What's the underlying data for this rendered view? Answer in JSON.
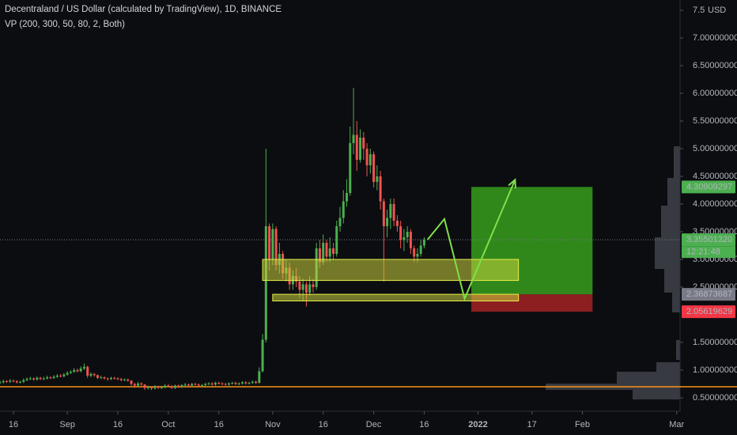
{
  "chart_data": {
    "type": "candlestick",
    "title": "Decentraland / US Dollar (calculated by TradingView), 1D, BINANCE",
    "subtitle": "VP (200, 300, 50, 80, 2, Both)",
    "unit_label": "USD",
    "up_color": "#4caf50",
    "down_color": "#ef5350",
    "x": [
      "2021-08-12",
      "2021-08-13",
      "2021-08-14",
      "2021-08-15",
      "2021-08-16",
      "2021-08-17",
      "2021-08-18",
      "2021-08-19",
      "2021-08-20",
      "2021-08-21",
      "2021-08-22",
      "2021-08-23",
      "2021-08-24",
      "2021-08-25",
      "2021-08-26",
      "2021-08-27",
      "2021-08-28",
      "2021-08-29",
      "2021-08-30",
      "2021-08-31",
      "2021-09-01",
      "2021-09-02",
      "2021-09-03",
      "2021-09-04",
      "2021-09-05",
      "2021-09-06",
      "2021-09-07",
      "2021-09-08",
      "2021-09-09",
      "2021-09-10",
      "2021-09-11",
      "2021-09-12",
      "2021-09-13",
      "2021-09-14",
      "2021-09-15",
      "2021-09-16",
      "2021-09-17",
      "2021-09-18",
      "2021-09-19",
      "2021-09-20",
      "2021-09-21",
      "2021-09-22",
      "2021-09-23",
      "2021-09-24",
      "2021-09-25",
      "2021-09-26",
      "2021-09-27",
      "2021-09-28",
      "2021-09-29",
      "2021-09-30",
      "2021-10-01",
      "2021-10-02",
      "2021-10-03",
      "2021-10-04",
      "2021-10-05",
      "2021-10-06",
      "2021-10-07",
      "2021-10-08",
      "2021-10-09",
      "2021-10-10",
      "2021-10-11",
      "2021-10-12",
      "2021-10-13",
      "2021-10-14",
      "2021-10-15",
      "2021-10-16",
      "2021-10-17",
      "2021-10-18",
      "2021-10-19",
      "2021-10-20",
      "2021-10-21",
      "2021-10-22",
      "2021-10-23",
      "2021-10-24",
      "2021-10-25",
      "2021-10-26",
      "2021-10-27",
      "2021-10-28",
      "2021-10-29",
      "2021-10-30",
      "2021-10-31",
      "2021-11-01",
      "2021-11-02",
      "2021-11-03",
      "2021-11-04",
      "2021-11-05",
      "2021-11-06",
      "2021-11-07",
      "2021-11-08",
      "2021-11-09",
      "2021-11-10",
      "2021-11-11",
      "2021-11-12",
      "2021-11-13",
      "2021-11-14",
      "2021-11-15",
      "2021-11-16",
      "2021-11-17",
      "2021-11-18",
      "2021-11-19",
      "2021-11-20",
      "2021-11-21",
      "2021-11-22",
      "2021-11-23",
      "2021-11-24",
      "2021-11-25",
      "2021-11-26",
      "2021-11-27",
      "2021-11-28",
      "2021-11-29",
      "2021-11-30",
      "2021-12-01",
      "2021-12-02",
      "2021-12-03",
      "2021-12-04",
      "2021-12-05",
      "2021-12-06",
      "2021-12-07",
      "2021-12-08",
      "2021-12-09",
      "2021-12-10",
      "2021-12-11",
      "2021-12-12",
      "2021-12-13",
      "2021-12-14",
      "2021-12-15",
      "2021-12-16"
    ],
    "open": [
      0.77,
      0.78,
      0.8,
      0.79,
      0.81,
      0.8,
      0.78,
      0.79,
      0.82,
      0.84,
      0.85,
      0.83,
      0.86,
      0.84,
      0.85,
      0.87,
      0.86,
      0.88,
      0.9,
      0.89,
      0.92,
      0.95,
      0.97,
      1.0,
      0.98,
      1.03,
      1.06,
      0.9,
      0.93,
      0.91,
      0.86,
      0.87,
      0.85,
      0.84,
      0.86,
      0.85,
      0.84,
      0.82,
      0.83,
      0.81,
      0.75,
      0.72,
      0.76,
      0.74,
      0.68,
      0.69,
      0.67,
      0.7,
      0.68,
      0.69,
      0.72,
      0.71,
      0.68,
      0.72,
      0.7,
      0.73,
      0.74,
      0.72,
      0.75,
      0.74,
      0.72,
      0.73,
      0.75,
      0.76,
      0.74,
      0.77,
      0.76,
      0.75,
      0.74,
      0.76,
      0.77,
      0.75,
      0.76,
      0.78,
      0.76,
      0.77,
      0.79,
      0.77,
      0.98,
      1.55,
      3.6,
      3.0,
      3.55,
      2.9,
      3.1,
      2.75,
      2.85,
      2.55,
      2.7,
      2.6,
      2.45,
      2.55,
      2.4,
      2.55,
      2.5,
      3.2,
      2.95,
      3.3,
      3.05,
      3.2,
      3.1,
      3.6,
      3.75,
      4.05,
      4.2,
      5.1,
      5.25,
      4.8,
      5.2,
      5.0,
      4.7,
      4.9,
      4.4,
      4.5,
      4.05,
      3.6,
      3.75,
      4.0,
      3.7,
      3.6,
      3.35,
      3.4,
      3.5,
      3.2,
      3.05,
      3.1,
      3.25
    ],
    "high": [
      0.81,
      0.83,
      0.82,
      0.84,
      0.83,
      0.82,
      0.81,
      0.85,
      0.87,
      0.88,
      0.87,
      0.89,
      0.88,
      0.88,
      0.9,
      0.89,
      0.91,
      0.93,
      0.93,
      0.95,
      0.98,
      1.0,
      1.04,
      1.03,
      1.07,
      1.12,
      1.08,
      0.96,
      0.95,
      0.92,
      0.9,
      0.89,
      0.87,
      0.88,
      0.88,
      0.87,
      0.86,
      0.85,
      0.85,
      0.82,
      0.77,
      0.79,
      0.78,
      0.75,
      0.72,
      0.71,
      0.73,
      0.72,
      0.72,
      0.75,
      0.75,
      0.73,
      0.74,
      0.74,
      0.75,
      0.77,
      0.76,
      0.77,
      0.77,
      0.76,
      0.75,
      0.77,
      0.78,
      0.78,
      0.79,
      0.79,
      0.78,
      0.77,
      0.78,
      0.79,
      0.79,
      0.78,
      0.8,
      0.8,
      0.79,
      0.81,
      0.81,
      1.05,
      1.65,
      5.0,
      3.65,
      3.65,
      3.6,
      3.3,
      3.15,
      3.0,
      2.95,
      2.8,
      2.85,
      2.7,
      2.65,
      2.6,
      2.7,
      2.65,
      3.3,
      3.35,
      3.45,
      3.35,
      3.4,
      3.3,
      3.7,
      3.95,
      4.25,
      4.45,
      5.4,
      6.1,
      5.5,
      5.35,
      5.3,
      5.1,
      5.0,
      4.95,
      4.7,
      4.6,
      4.1,
      3.9,
      4.1,
      4.1,
      3.8,
      3.7,
      3.55,
      3.6,
      3.55,
      3.25,
      3.2,
      3.35,
      3.4
    ],
    "low": [
      0.75,
      0.76,
      0.77,
      0.77,
      0.78,
      0.76,
      0.76,
      0.77,
      0.8,
      0.82,
      0.81,
      0.81,
      0.82,
      0.82,
      0.83,
      0.84,
      0.84,
      0.86,
      0.87,
      0.87,
      0.9,
      0.93,
      0.95,
      0.96,
      0.96,
      1.0,
      0.86,
      0.87,
      0.88,
      0.84,
      0.84,
      0.83,
      0.81,
      0.82,
      0.83,
      0.82,
      0.8,
      0.8,
      0.79,
      0.72,
      0.68,
      0.7,
      0.72,
      0.64,
      0.65,
      0.64,
      0.65,
      0.66,
      0.66,
      0.67,
      0.69,
      0.66,
      0.66,
      0.68,
      0.68,
      0.71,
      0.7,
      0.7,
      0.72,
      0.7,
      0.7,
      0.71,
      0.73,
      0.72,
      0.72,
      0.74,
      0.73,
      0.72,
      0.72,
      0.74,
      0.73,
      0.73,
      0.74,
      0.74,
      0.74,
      0.75,
      0.75,
      0.76,
      0.96,
      1.5,
      2.8,
      2.9,
      2.8,
      2.75,
      2.65,
      2.6,
      2.45,
      2.45,
      2.5,
      2.3,
      2.25,
      2.15,
      2.35,
      2.4,
      2.45,
      2.85,
      2.9,
      2.95,
      2.95,
      3.0,
      3.05,
      3.5,
      3.65,
      3.95,
      4.15,
      4.9,
      4.6,
      4.75,
      4.8,
      4.5,
      4.55,
      4.3,
      4.25,
      3.9,
      2.6,
      3.4,
      3.55,
      3.6,
      3.5,
      3.2,
      3.15,
      3.3,
      3.1,
      2.95,
      2.95,
      3.05,
      3.2
    ],
    "close": [
      0.78,
      0.8,
      0.79,
      0.81,
      0.8,
      0.78,
      0.79,
      0.82,
      0.84,
      0.85,
      0.83,
      0.86,
      0.84,
      0.85,
      0.87,
      0.86,
      0.88,
      0.9,
      0.89,
      0.92,
      0.95,
      0.97,
      1.0,
      0.98,
      1.03,
      1.06,
      0.9,
      0.93,
      0.91,
      0.86,
      0.87,
      0.85,
      0.84,
      0.86,
      0.85,
      0.84,
      0.82,
      0.83,
      0.81,
      0.75,
      0.72,
      0.76,
      0.74,
      0.68,
      0.69,
      0.67,
      0.7,
      0.68,
      0.69,
      0.72,
      0.71,
      0.68,
      0.72,
      0.7,
      0.73,
      0.74,
      0.72,
      0.75,
      0.74,
      0.72,
      0.73,
      0.75,
      0.76,
      0.74,
      0.77,
      0.76,
      0.75,
      0.74,
      0.76,
      0.77,
      0.75,
      0.76,
      0.78,
      0.76,
      0.77,
      0.79,
      0.77,
      0.98,
      1.55,
      3.6,
      3.0,
      3.55,
      2.9,
      3.1,
      2.75,
      2.85,
      2.55,
      2.7,
      2.6,
      2.45,
      2.55,
      2.4,
      2.55,
      2.5,
      3.2,
      2.95,
      3.3,
      3.05,
      3.2,
      3.1,
      3.6,
      3.75,
      4.05,
      4.2,
      5.1,
      5.25,
      4.8,
      5.2,
      5.0,
      4.7,
      4.9,
      4.4,
      4.5,
      4.05,
      3.6,
      3.75,
      4.0,
      3.7,
      3.6,
      3.35,
      3.4,
      3.5,
      3.2,
      3.05,
      3.1,
      3.25,
      3.355
    ],
    "xlim": [
      "2021-08-12",
      "2022-03-02"
    ],
    "xticks": [
      {
        "value": "2021-08-16",
        "label": "16"
      },
      {
        "value": "2021-09-01",
        "label": "Sep"
      },
      {
        "value": "2021-09-16",
        "label": "16"
      },
      {
        "value": "2021-10-01",
        "label": "Oct"
      },
      {
        "value": "2021-10-16",
        "label": "16"
      },
      {
        "value": "2021-11-01",
        "label": "Nov"
      },
      {
        "value": "2021-11-16",
        "label": "16"
      },
      {
        "value": "2021-12-01",
        "label": "Dec"
      },
      {
        "value": "2021-12-16",
        "label": "16"
      },
      {
        "value": "2022-01-01",
        "label": "2022"
      },
      {
        "value": "2022-01-17",
        "label": "17"
      },
      {
        "value": "2022-02-01",
        "label": "Feb"
      },
      {
        "value": "2022-03-01",
        "label": "Mar"
      }
    ],
    "ylim": [
      0.257,
      7.686
    ],
    "yticks": [
      {
        "value": 0.5,
        "label": "0.50000000"
      },
      {
        "value": 1.0,
        "label": "1.00000000"
      },
      {
        "value": 1.5,
        "label": "1.50000000"
      },
      {
        "value": 2.5,
        "label": "2.50000000"
      },
      {
        "value": 3.0,
        "label": "3.00000000"
      },
      {
        "value": 3.5,
        "label": "3.50000000"
      },
      {
        "value": 4.0,
        "label": "4.00000000"
      },
      {
        "value": 4.5,
        "label": "4.50000000"
      },
      {
        "value": 5.0,
        "label": "5.00000000"
      },
      {
        "value": 5.5,
        "label": "5.50000000"
      },
      {
        "value": 6.0,
        "label": "6.00000000"
      },
      {
        "value": 6.5,
        "label": "6.50000000"
      },
      {
        "value": 7.0,
        "label": "7.00000000"
      },
      {
        "value": 7.5,
        "label": "7.5"
      }
    ],
    "horizontal_line": {
      "value": 0.7,
      "color": "#f7931a"
    },
    "zones": [
      {
        "start": "2021-10-29",
        "end": "2022-01-13",
        "low": 2.62,
        "high": 3.0
      },
      {
        "start": "2021-11-01",
        "end": "2022-01-13",
        "low": 2.25,
        "high": 2.37
      }
    ],
    "position": {
      "start": "2021-12-30",
      "end": "2022-02-04",
      "entry": 2.36873687,
      "target": 4.30909297,
      "stop": 2.05619629
    },
    "projection": {
      "x": [
        "2021-12-17",
        "2021-12-22",
        "2021-12-28",
        "2022-01-12"
      ],
      "y": [
        3.357,
        3.73,
        2.29,
        4.44
      ],
      "color": "#7ee04a"
    },
    "countdown": "12:21:48",
    "price_labels": [
      {
        "value": 4.30909297,
        "label": "4.30909297",
        "color": "#4caf50"
      },
      {
        "value": 3.3550132,
        "label": "3.35501320",
        "color": "#4caf50"
      },
      {
        "value": 2.36873687,
        "label": "2.36873687",
        "color": "#787b86"
      },
      {
        "value": 2.05619629,
        "label": "2.05619629",
        "color": "#f23645"
      }
    ]
  }
}
